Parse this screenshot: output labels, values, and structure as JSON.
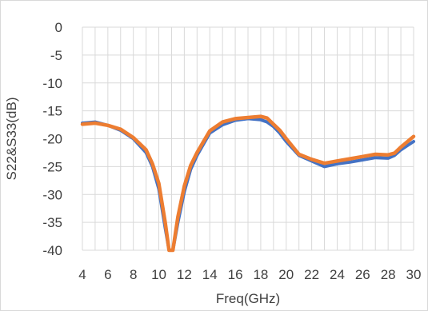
{
  "chart_data": {
    "type": "line",
    "xlabel": "Freq(GHz)",
    "ylabel": "S22&S33(dB)",
    "xlim": [
      4,
      30
    ],
    "ylim": [
      -40,
      0
    ],
    "x_ticks": [
      "4",
      "6",
      "8",
      "10",
      "12",
      "14",
      "16",
      "18",
      "20",
      "22",
      "24",
      "26",
      "28",
      "30"
    ],
    "y_ticks": [
      "0",
      "-5",
      "-10",
      "-15",
      "-20",
      "-25",
      "-30",
      "-35",
      "-40"
    ],
    "grid": "vertical and horizontal",
    "legend": "none",
    "colors": {
      "blue": "#4472c4",
      "orange": "#ed7d31",
      "grid": "#d9d9d9",
      "text": "#404040"
    },
    "series": [
      {
        "color": "#4472c4",
        "x": [
          4,
          5,
          6,
          7,
          8,
          9,
          9.5,
          10,
          10.5,
          10.8,
          11.1,
          11.5,
          12,
          12.5,
          13,
          14,
          15,
          16,
          17,
          18,
          18.5,
          19,
          19.5,
          20,
          21,
          22,
          23,
          24,
          25,
          26,
          27,
          28,
          28.5,
          29,
          30
        ],
        "values": [
          -17.2,
          -17.0,
          -17.6,
          -18.5,
          -20.0,
          -22.5,
          -25.0,
          -29.0,
          -36.0,
          -40.0,
          -40.0,
          -35.0,
          -29.5,
          -25.5,
          -23.0,
          -19.0,
          -17.5,
          -16.7,
          -16.4,
          -16.6,
          -17.0,
          -17.8,
          -19.0,
          -20.5,
          -23.0,
          -24.0,
          -25.0,
          -24.5,
          -24.2,
          -23.8,
          -23.4,
          -23.5,
          -23.0,
          -22.0,
          -20.5
        ]
      },
      {
        "color": "#ed7d31",
        "x": [
          4,
          5,
          6,
          7,
          8,
          9,
          9.5,
          10,
          10.5,
          10.8,
          11.1,
          11.5,
          12,
          12.5,
          13,
          14,
          15,
          16,
          17,
          18,
          18.5,
          19,
          19.5,
          20,
          21,
          22,
          23,
          23.5,
          24,
          25,
          26,
          27,
          28,
          28.5,
          29,
          30
        ],
        "values": [
          -17.4,
          -17.2,
          -17.6,
          -18.3,
          -19.8,
          -22.0,
          -24.5,
          -28.0,
          -35.0,
          -40.0,
          -40.0,
          -34.0,
          -28.5,
          -24.8,
          -22.5,
          -18.6,
          -17.0,
          -16.4,
          -16.2,
          -16.0,
          -16.3,
          -17.4,
          -18.5,
          -20.0,
          -22.8,
          -23.7,
          -24.4,
          -24.2,
          -24.0,
          -23.6,
          -23.2,
          -22.8,
          -22.9,
          -22.6,
          -21.5,
          -19.6
        ]
      }
    ]
  }
}
